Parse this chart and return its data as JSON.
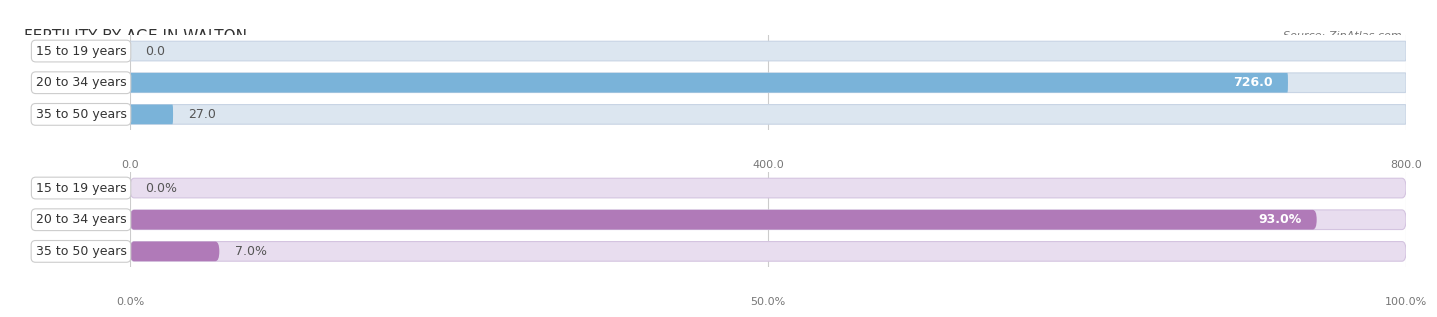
{
  "title": "FERTILITY BY AGE IN WALTON",
  "source": "Source: ZipAtlas.com",
  "top_section": {
    "categories": [
      "15 to 19 years",
      "20 to 34 years",
      "35 to 50 years"
    ],
    "values": [
      0.0,
      726.0,
      27.0
    ],
    "max_value": 800.0,
    "x_ticks": [
      0.0,
      400.0,
      800.0
    ],
    "bar_color": "#7ab3d9",
    "bg_color": "#dce6f0",
    "bg_edge_color": "#c8d4e4"
  },
  "bottom_section": {
    "categories": [
      "15 to 19 years",
      "20 to 34 years",
      "35 to 50 years"
    ],
    "values": [
      0.0,
      93.0,
      7.0
    ],
    "max_value": 100.0,
    "x_ticks": [
      0.0,
      50.0,
      100.0
    ],
    "bar_color": "#b07ab8",
    "bg_color": "#e8ddef",
    "bg_edge_color": "#d4c4e0"
  },
  "title_fontsize": 11,
  "cat_fontsize": 9,
  "val_fontsize": 9,
  "tick_fontsize": 8,
  "source_fontsize": 8,
  "title_color": "#333333",
  "source_color": "#777777",
  "tick_color": "#777777",
  "val_color_inside": "#ffffff",
  "val_color_outside": "#555555",
  "cat_label_color": "#333333",
  "grid_color": "#cccccc"
}
